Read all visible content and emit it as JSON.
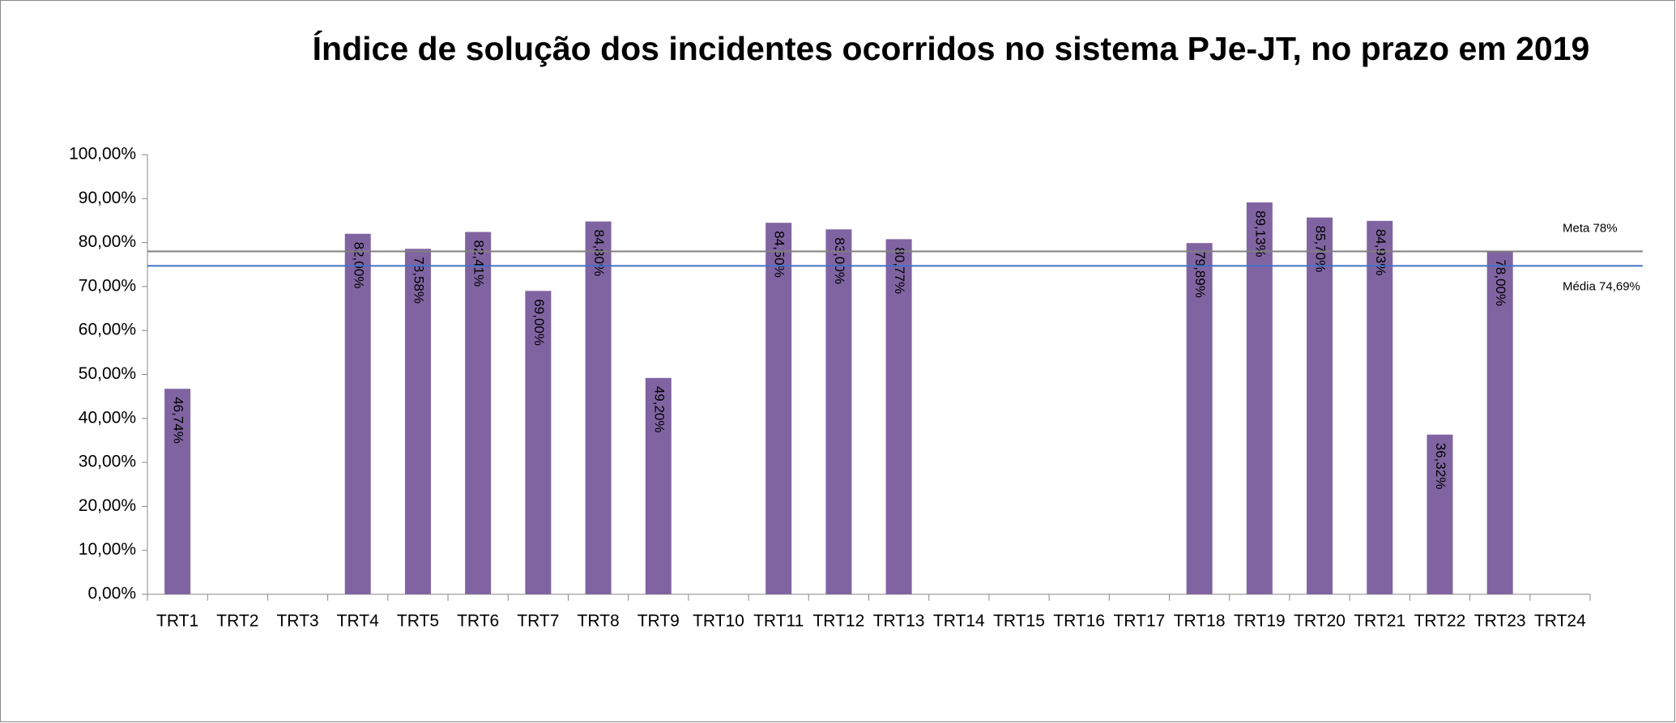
{
  "chart_data": {
    "type": "bar",
    "title": "Índice de solução dos incidentes ocorridos no sistema PJe-JT, no prazo em 2019",
    "categories": [
      "TRT1",
      "TRT2",
      "TRT3",
      "TRT4",
      "TRT5",
      "TRT6",
      "TRT7",
      "TRT8",
      "TRT9",
      "TRT10",
      "TRT11",
      "TRT12",
      "TRT13",
      "TRT14",
      "TRT15",
      "TRT16",
      "TRT17",
      "TRT18",
      "TRT19",
      "TRT20",
      "TRT21",
      "TRT22",
      "TRT23",
      "TRT24"
    ],
    "values": [
      46.74,
      null,
      null,
      82.0,
      78.58,
      82.41,
      69.0,
      84.8,
      49.2,
      null,
      84.5,
      83.0,
      80.77,
      null,
      null,
      null,
      null,
      79.89,
      89.13,
      85.7,
      84.93,
      36.32,
      78.0,
      null
    ],
    "value_labels": [
      "46,74%",
      null,
      null,
      "82,00%",
      "78,58%",
      "82,41%",
      "69,00%",
      "84,80%",
      "49,20%",
      null,
      "84,50%",
      "83,00%",
      "80,77%",
      null,
      null,
      null,
      null,
      "79,89%",
      "89,13%",
      "85,70%",
      "84,93%",
      "36,32%",
      "78,00%",
      null
    ],
    "color": "#8064a2",
    "ylim": [
      0,
      100
    ],
    "yticks": [
      {
        "value": 0,
        "label": "0,00%"
      },
      {
        "value": 10,
        "label": "10,00%"
      },
      {
        "value": 20,
        "label": "20,00%"
      },
      {
        "value": 30,
        "label": "30,00%"
      },
      {
        "value": 40,
        "label": "40,00%"
      },
      {
        "value": 50,
        "label": "50,00%"
      },
      {
        "value": 60,
        "label": "60,00%"
      },
      {
        "value": 70,
        "label": "70,00%"
      },
      {
        "value": 80,
        "label": "80,00%"
      },
      {
        "value": 90,
        "label": "90,00%"
      },
      {
        "value": 100,
        "label": "100,00%"
      }
    ],
    "grid": false,
    "reference_lines": [
      {
        "label": "Meta 78%",
        "value": 78,
        "color": "#7f7f7f"
      },
      {
        "label": "Média 74,69%",
        "value": 74.69,
        "color": "#4472c4"
      }
    ]
  }
}
